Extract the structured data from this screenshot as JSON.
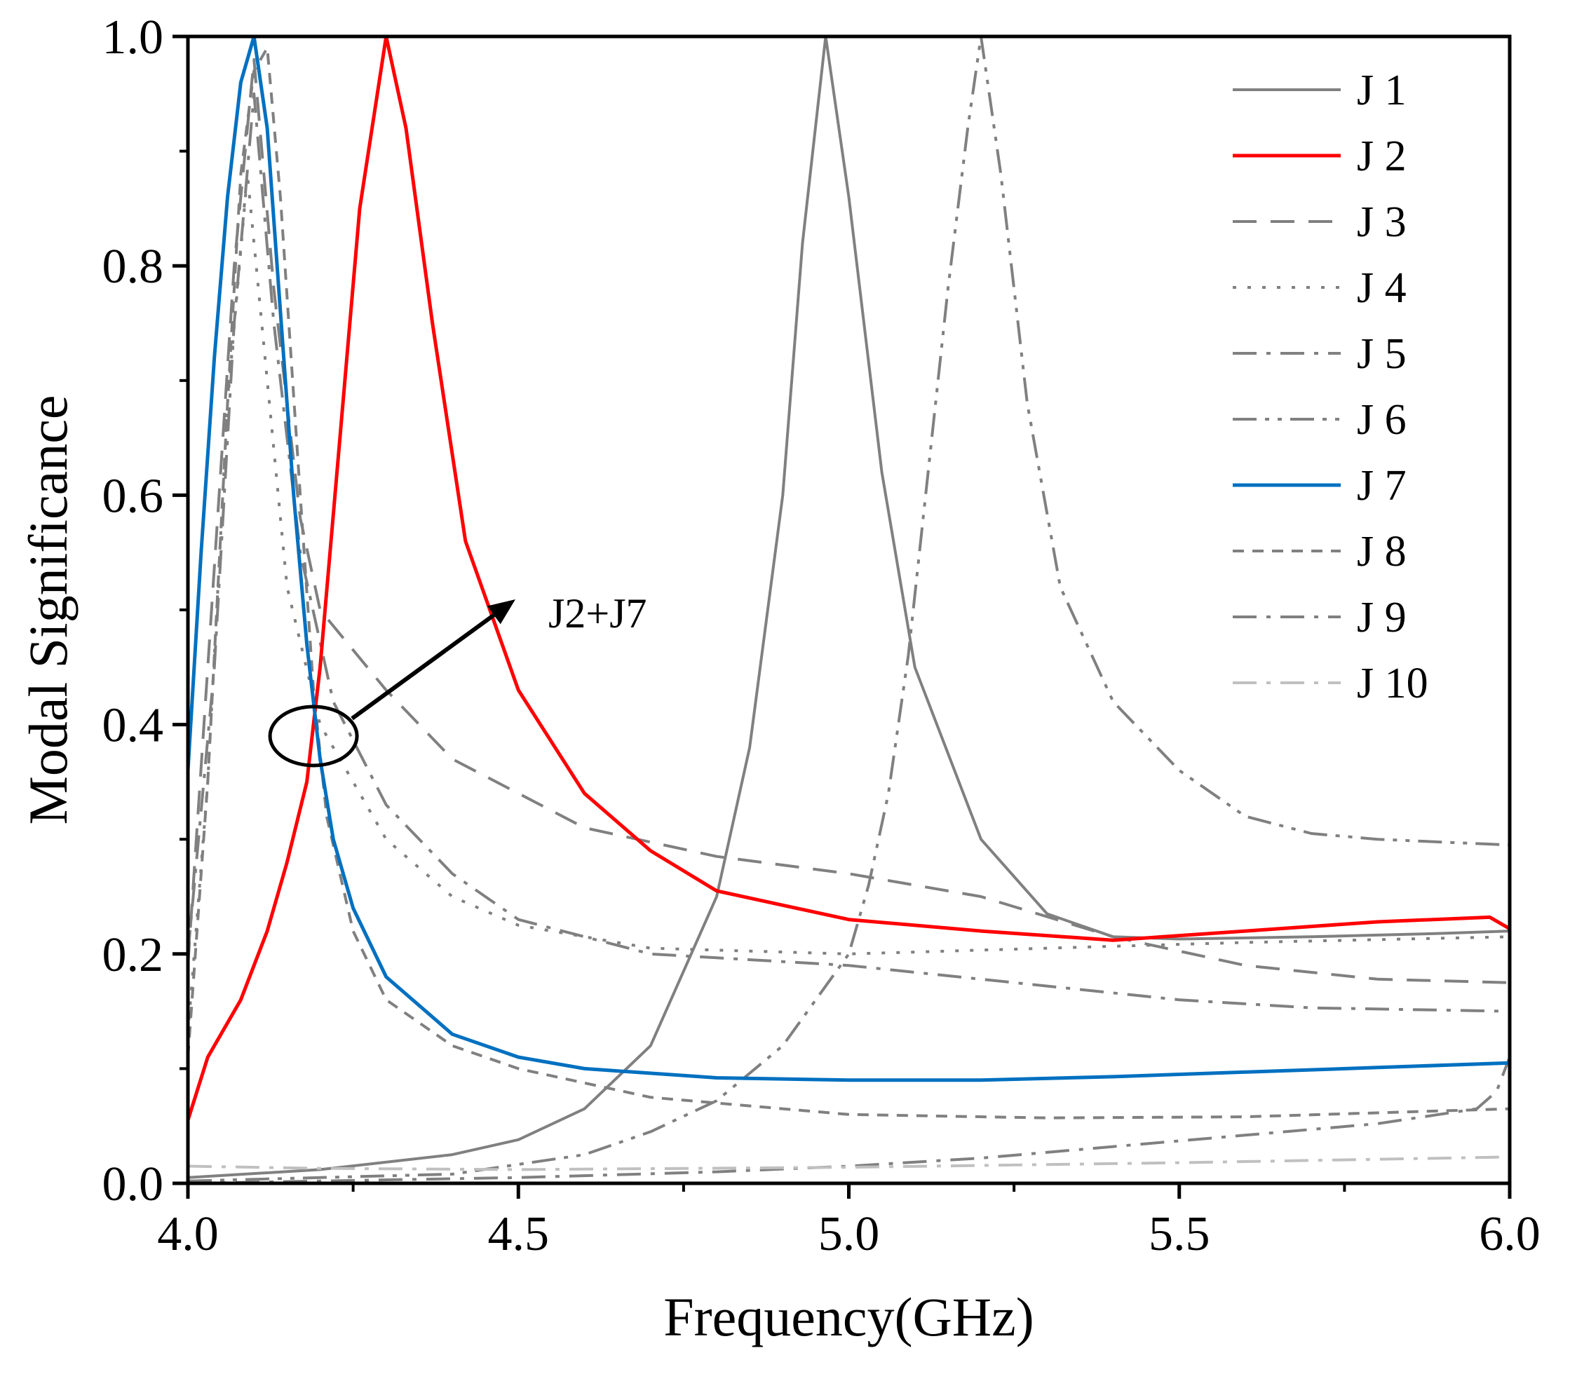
{
  "chart_data": {
    "type": "line",
    "xlabel": "Frequency(GHz)",
    "ylabel": "Modal Significance",
    "xlim": [
      4.0,
      6.0
    ],
    "ylim": [
      0.0,
      1.0
    ],
    "x_ticks": [
      "4.0",
      "4.5",
      "5.0",
      "5.5",
      "6.0"
    ],
    "y_ticks": [
      "0.0",
      "0.2",
      "0.4",
      "0.6",
      "0.8",
      "1.0"
    ],
    "grid": false,
    "legend_position": "top-right",
    "annotation": {
      "text": "J2+J7",
      "x": 4.19,
      "y": 0.39
    },
    "series": [
      {
        "name": "J 1",
        "color": "#808080",
        "style": "solid",
        "width": 4,
        "points": [
          [
            4.0,
            0.005
          ],
          [
            4.2,
            0.012
          ],
          [
            4.4,
            0.025
          ],
          [
            4.5,
            0.038
          ],
          [
            4.6,
            0.065
          ],
          [
            4.7,
            0.12
          ],
          [
            4.8,
            0.25
          ],
          [
            4.85,
            0.38
          ],
          [
            4.9,
            0.6
          ],
          [
            4.93,
            0.82
          ],
          [
            4.965,
            1.0
          ],
          [
            5.0,
            0.86
          ],
          [
            5.05,
            0.62
          ],
          [
            5.1,
            0.45
          ],
          [
            5.2,
            0.3
          ],
          [
            5.3,
            0.235
          ],
          [
            5.4,
            0.215
          ],
          [
            5.5,
            0.213
          ],
          [
            5.7,
            0.215
          ],
          [
            5.9,
            0.218
          ],
          [
            6.0,
            0.22
          ]
        ]
      },
      {
        "name": "J 2",
        "color": "#ff0000",
        "style": "solid",
        "width": 5,
        "points": [
          [
            4.0,
            0.055
          ],
          [
            4.03,
            0.11
          ],
          [
            4.08,
            0.16
          ],
          [
            4.12,
            0.22
          ],
          [
            4.15,
            0.28
          ],
          [
            4.18,
            0.35
          ],
          [
            4.2,
            0.45
          ],
          [
            4.23,
            0.65
          ],
          [
            4.26,
            0.85
          ],
          [
            4.3,
            1.0
          ],
          [
            4.33,
            0.92
          ],
          [
            4.37,
            0.75
          ],
          [
            4.42,
            0.56
          ],
          [
            4.5,
            0.43
          ],
          [
            4.6,
            0.34
          ],
          [
            4.7,
            0.29
          ],
          [
            4.8,
            0.255
          ],
          [
            5.0,
            0.23
          ],
          [
            5.2,
            0.22
          ],
          [
            5.4,
            0.212
          ],
          [
            5.6,
            0.22
          ],
          [
            5.8,
            0.228
          ],
          [
            5.97,
            0.232
          ],
          [
            6.0,
            0.222
          ]
        ]
      },
      {
        "name": "J 3",
        "color": "#808080",
        "style": "dash",
        "width": 4,
        "points": [
          [
            4.0,
            0.19
          ],
          [
            4.03,
            0.45
          ],
          [
            4.07,
            0.8
          ],
          [
            4.1,
            0.98
          ],
          [
            4.13,
            0.78
          ],
          [
            4.17,
            0.58
          ],
          [
            4.2,
            0.5
          ],
          [
            4.3,
            0.43
          ],
          [
            4.4,
            0.37
          ],
          [
            4.6,
            0.31
          ],
          [
            4.8,
            0.285
          ],
          [
            5.0,
            0.27
          ],
          [
            5.2,
            0.25
          ],
          [
            5.4,
            0.215
          ],
          [
            5.6,
            0.19
          ],
          [
            5.8,
            0.178
          ],
          [
            6.0,
            0.175
          ]
        ]
      },
      {
        "name": "J 4",
        "color": "#808080",
        "style": "dot",
        "width": 4,
        "points": [
          [
            4.0,
            0.13
          ],
          [
            4.03,
            0.35
          ],
          [
            4.06,
            0.68
          ],
          [
            4.09,
            0.88
          ],
          [
            4.12,
            0.7
          ],
          [
            4.15,
            0.52
          ],
          [
            4.2,
            0.4
          ],
          [
            4.3,
            0.3
          ],
          [
            4.4,
            0.25
          ],
          [
            4.5,
            0.225
          ],
          [
            4.7,
            0.205
          ],
          [
            5.0,
            0.2
          ],
          [
            5.3,
            0.205
          ],
          [
            5.6,
            0.21
          ],
          [
            6.0,
            0.215
          ]
        ]
      },
      {
        "name": "J 5",
        "color": "#808080",
        "style": "dashdot",
        "width": 4,
        "points": [
          [
            4.0,
            0.2
          ],
          [
            4.04,
            0.45
          ],
          [
            4.07,
            0.75
          ],
          [
            4.1,
            0.95
          ],
          [
            4.13,
            0.75
          ],
          [
            4.17,
            0.55
          ],
          [
            4.22,
            0.42
          ],
          [
            4.3,
            0.33
          ],
          [
            4.4,
            0.27
          ],
          [
            4.5,
            0.23
          ],
          [
            4.7,
            0.2
          ],
          [
            5.0,
            0.19
          ],
          [
            5.3,
            0.172
          ],
          [
            5.5,
            0.16
          ],
          [
            5.7,
            0.153
          ],
          [
            6.0,
            0.15
          ]
        ]
      },
      {
        "name": "J 6",
        "color": "#808080",
        "style": "dashdotdot",
        "width": 4,
        "points": [
          [
            4.0,
            0.002
          ],
          [
            4.4,
            0.008
          ],
          [
            4.6,
            0.025
          ],
          [
            4.7,
            0.045
          ],
          [
            4.8,
            0.072
          ],
          [
            4.9,
            0.12
          ],
          [
            4.95,
            0.16
          ],
          [
            5.0,
            0.2
          ],
          [
            5.03,
            0.26
          ],
          [
            5.06,
            0.34
          ],
          [
            5.09,
            0.46
          ],
          [
            5.12,
            0.62
          ],
          [
            5.15,
            0.78
          ],
          [
            5.18,
            0.92
          ],
          [
            5.2,
            1.0
          ],
          [
            5.23,
            0.88
          ],
          [
            5.27,
            0.68
          ],
          [
            5.32,
            0.52
          ],
          [
            5.4,
            0.42
          ],
          [
            5.5,
            0.36
          ],
          [
            5.6,
            0.32
          ],
          [
            5.7,
            0.305
          ],
          [
            5.8,
            0.3
          ],
          [
            6.0,
            0.295
          ]
        ]
      },
      {
        "name": "J 7",
        "color": "#0070c0",
        "style": "solid",
        "width": 5,
        "points": [
          [
            4.0,
            0.36
          ],
          [
            4.02,
            0.55
          ],
          [
            4.04,
            0.72
          ],
          [
            4.06,
            0.86
          ],
          [
            4.08,
            0.96
          ],
          [
            4.1,
            1.0
          ],
          [
            4.12,
            0.92
          ],
          [
            4.14,
            0.76
          ],
          [
            4.16,
            0.6
          ],
          [
            4.18,
            0.47
          ],
          [
            4.2,
            0.37
          ],
          [
            4.22,
            0.3
          ],
          [
            4.25,
            0.24
          ],
          [
            4.3,
            0.18
          ],
          [
            4.4,
            0.13
          ],
          [
            4.5,
            0.11
          ],
          [
            4.6,
            0.1
          ],
          [
            4.8,
            0.092
          ],
          [
            5.0,
            0.09
          ],
          [
            5.2,
            0.09
          ],
          [
            5.4,
            0.093
          ],
          [
            5.6,
            0.097
          ],
          [
            5.8,
            0.101
          ],
          [
            6.0,
            0.105
          ]
        ]
      },
      {
        "name": "J 8",
        "color": "#808080",
        "style": "shortdash",
        "width": 4,
        "points": [
          [
            4.0,
            0.11
          ],
          [
            4.03,
            0.35
          ],
          [
            4.06,
            0.68
          ],
          [
            4.08,
            0.88
          ],
          [
            4.1,
            0.97
          ],
          [
            4.12,
            0.99
          ],
          [
            4.14,
            0.86
          ],
          [
            4.17,
            0.6
          ],
          [
            4.19,
            0.43
          ],
          [
            4.21,
            0.32
          ],
          [
            4.25,
            0.22
          ],
          [
            4.3,
            0.16
          ],
          [
            4.4,
            0.12
          ],
          [
            4.5,
            0.1
          ],
          [
            4.7,
            0.075
          ],
          [
            5.0,
            0.06
          ],
          [
            5.3,
            0.057
          ],
          [
            5.6,
            0.058
          ],
          [
            6.0,
            0.065
          ]
        ]
      },
      {
        "name": "J 9",
        "color": "#808080",
        "style": "dashdot",
        "width": 4,
        "points": [
          [
            4.0,
            0.0
          ],
          [
            4.5,
            0.005
          ],
          [
            4.8,
            0.01
          ],
          [
            5.0,
            0.015
          ],
          [
            5.2,
            0.022
          ],
          [
            5.4,
            0.032
          ],
          [
            5.6,
            0.042
          ],
          [
            5.8,
            0.052
          ],
          [
            5.95,
            0.065
          ],
          [
            5.98,
            0.08
          ],
          [
            6.0,
            0.11
          ]
        ]
      },
      {
        "name": "J 10",
        "color": "#c0c0c0",
        "style": "dashdot",
        "width": 4,
        "points": [
          [
            4.0,
            0.015
          ],
          [
            4.2,
            0.013
          ],
          [
            4.5,
            0.012
          ],
          [
            5.0,
            0.014
          ],
          [
            5.5,
            0.018
          ],
          [
            6.0,
            0.023
          ]
        ]
      }
    ]
  }
}
